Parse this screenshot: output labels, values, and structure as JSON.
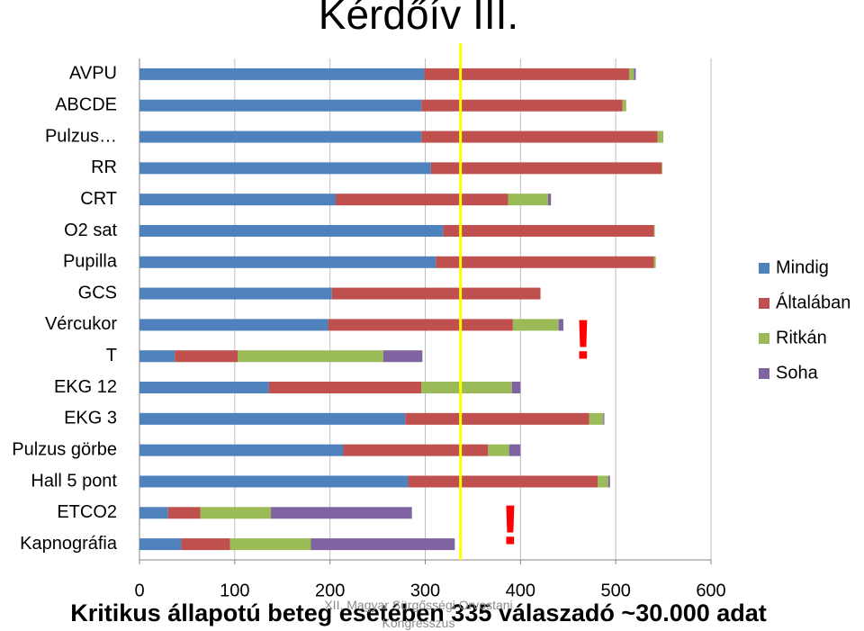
{
  "title": "Kérdőív III.",
  "chart_data": {
    "type": "stacked-barh",
    "categories": [
      "AVPU",
      "ABCDE",
      "Pulzus…",
      "RR",
      "CRT",
      "O2 sat",
      "Pupilla",
      "GCS",
      "Vércukor",
      "T",
      "EKG 12",
      "EKG 3",
      "Pulzus görbe",
      "Hall 5 pont",
      "ETCO2",
      "Kapnográfia"
    ],
    "series": [
      {
        "name": "Mindig",
        "color": "#4f81bd",
        "values": [
          299,
          296,
          296,
          306,
          206,
          319,
          311,
          202,
          198,
          37,
          136,
          279,
          214,
          282,
          30,
          44
        ]
      },
      {
        "name": "Általában",
        "color": "#c0504d",
        "values": [
          215,
          211,
          248,
          242,
          181,
          221,
          229,
          219,
          194,
          66,
          160,
          193,
          152,
          199,
          34,
          51
        ]
      },
      {
        "name": "Ritkán",
        "color": "#9bbb59",
        "values": [
          5,
          4,
          6,
          1,
          42,
          1,
          2,
          0,
          48,
          153,
          95,
          15,
          22,
          11,
          74,
          85
        ]
      },
      {
        "name": "Soha",
        "color": "#8064a2",
        "values": [
          2,
          0,
          0,
          0,
          3,
          0,
          0,
          0,
          5,
          41,
          9,
          1,
          12,
          2,
          148,
          151
        ]
      }
    ],
    "xlim": [
      0,
      600
    ],
    "xticks": [
      0,
      100,
      200,
      300,
      400,
      500,
      600
    ],
    "grid": true,
    "reference_value": 337,
    "reference_color": "#ffff00",
    "legend": "right"
  },
  "annotations": [
    "!",
    "!"
  ],
  "footer": "Kritikus állapotú beteg esetében 335 válaszadó ~30.000  adat",
  "conference": "XII. Magyar Sürgősségi Orvostani Kongresszus"
}
